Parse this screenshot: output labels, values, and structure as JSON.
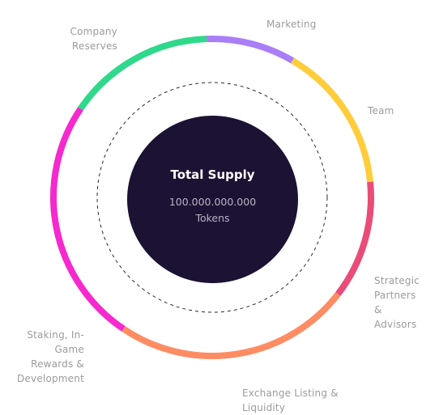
{
  "chart_data": {
    "type": "pie",
    "center": {
      "title": "Total Supply",
      "amount": "100.000.000.000",
      "unit": "Tokens"
    },
    "slices": [
      {
        "label_lines": [
          "Marketing"
        ],
        "value": 9,
        "color": "#a97ef7"
      },
      {
        "label_lines": [
          "Team"
        ],
        "value": 15,
        "color": "#ffcd3c"
      },
      {
        "label_lines": [
          "Strategic",
          "Partners &",
          "Advisors"
        ],
        "value": 12,
        "color": "#ea4c78"
      },
      {
        "label_lines": [
          "Exchange Listing &",
          "Liquidity"
        ],
        "value": 24,
        "color": "#ff8c63"
      },
      {
        "label_lines": [
          "Staking, In-Game",
          "Rewards &",
          "Development"
        ],
        "value": 25,
        "color": "#f529ce"
      },
      {
        "label_lines": [
          "Company",
          "Reserves"
        ],
        "value": 15,
        "color": "#2fd98b"
      }
    ]
  }
}
